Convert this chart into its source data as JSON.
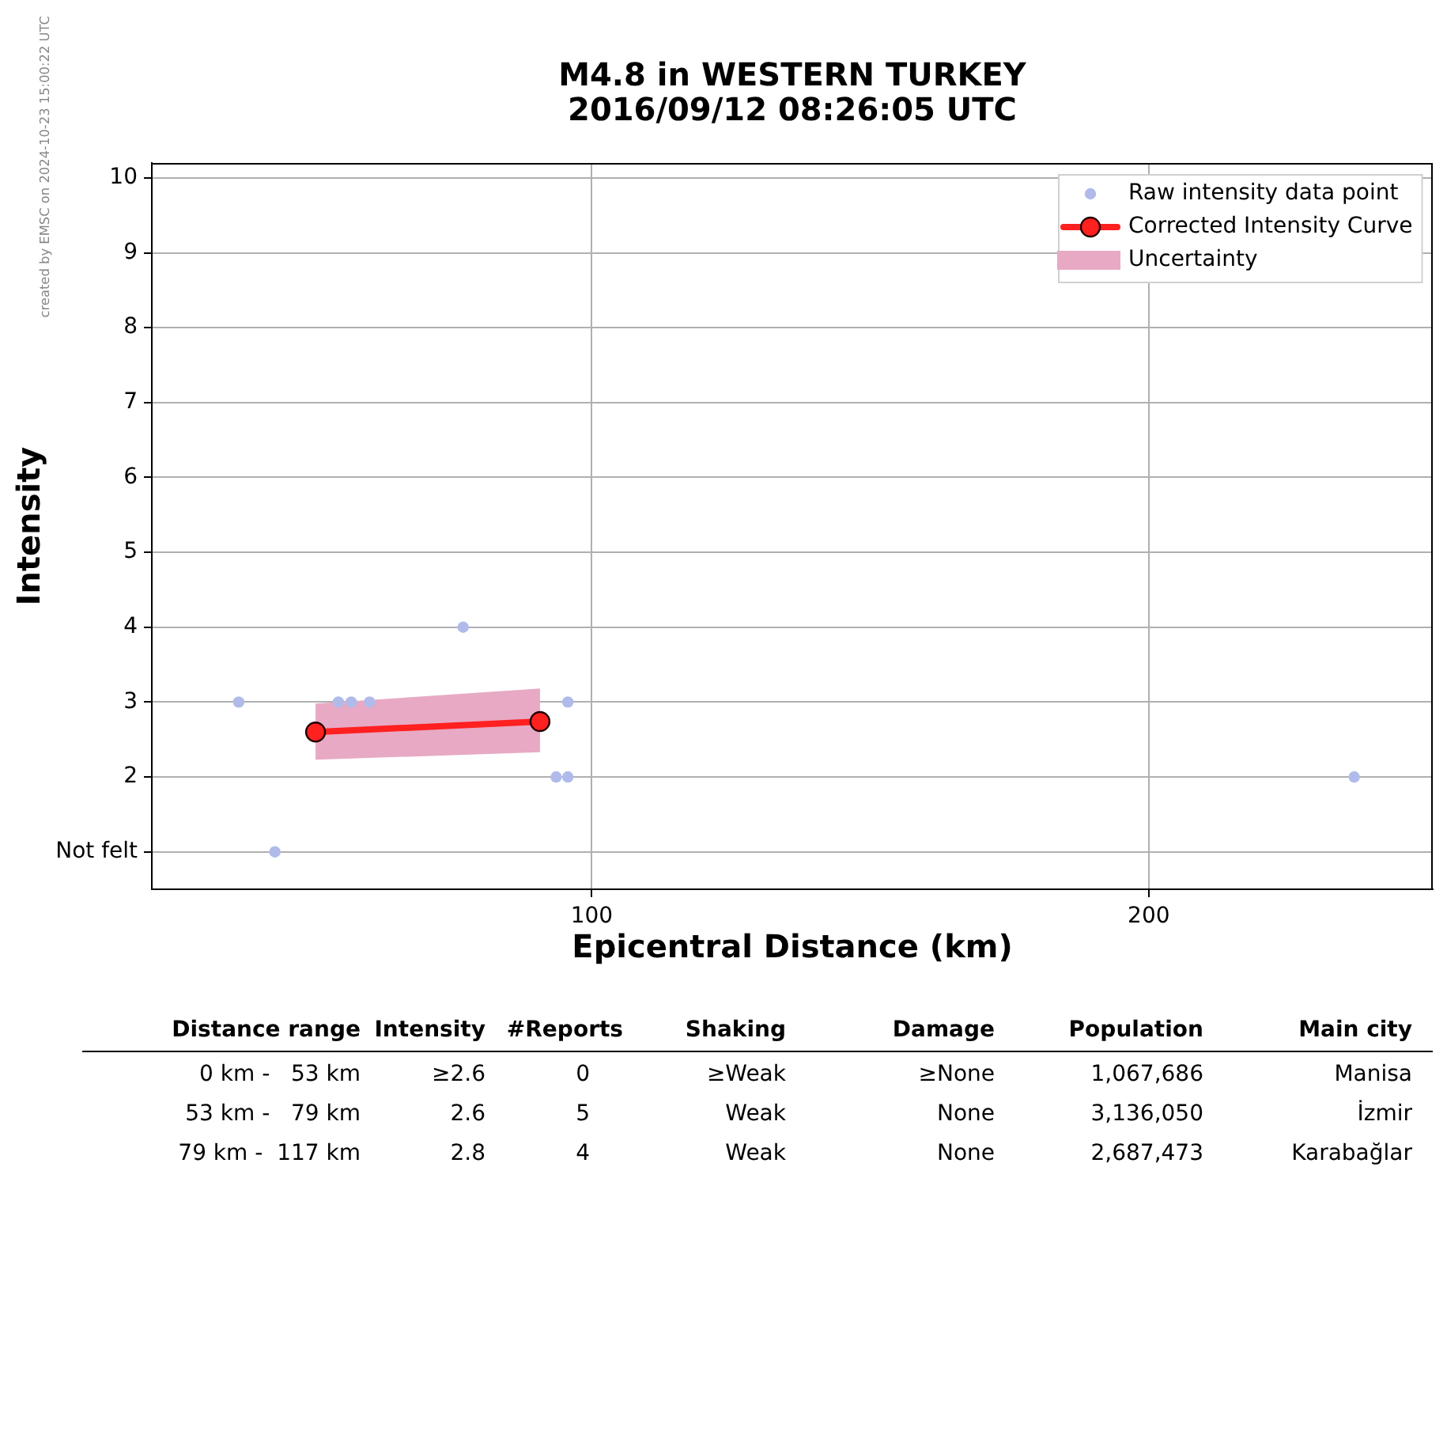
{
  "chart_data": [
    {
      "type": "scatter",
      "title": "M4.8 in WESTERN TURKEY",
      "subtitle": "2016/09/12 08:26:05 UTC",
      "xlabel": "Epicentral Distance (km)",
      "ylabel": "Intensity",
      "annotations": [
        "created by EMSC on 2024-10-23 15:00:22 UTC"
      ],
      "xlim": [
        21,
        251
      ],
      "xticks": [
        100,
        200
      ],
      "ylim": [
        0.5,
        10.2
      ],
      "yticks": [
        {
          "value": 1,
          "label": "Not felt"
        },
        2,
        3,
        4,
        5,
        6,
        7,
        8,
        9,
        10
      ],
      "grid": true,
      "legend": "top right",
      "series": [
        {
          "name": "Raw intensity data point",
          "type": "scatter",
          "color": "#b0bbea",
          "marker": "circle",
          "x": [
            36.6,
            43.1,
            54.5,
            56.8,
            60.1,
            76.9,
            93.6,
            95.7,
            95.7,
            236.9
          ],
          "values": [
            3,
            1,
            3,
            3,
            3,
            4,
            2,
            2,
            3,
            2
          ]
        },
        {
          "name": "Corrected Intensity Curve",
          "type": "line",
          "color": "#ff2020",
          "marker": "circle",
          "line_style": "solid",
          "x": [
            50.4,
            90.7
          ],
          "values": [
            2.6,
            2.74
          ],
          "lower": [
            2.23,
            2.33
          ],
          "upper": [
            2.98,
            3.18
          ]
        },
        {
          "name": "Uncertainty",
          "type": "area",
          "color": "#e8a9c4"
        }
      ]
    },
    {
      "type": "other",
      "categories": [
        "Distance range",
        "Intensity",
        "#Reports",
        "Shaking",
        "Damage",
        "Population",
        "Main city"
      ],
      "cell_labels": [
        [
          "0 km -   53 km",
          "≥2.6",
          "0",
          "≥Weak",
          "≥None",
          "1,067,686",
          "Manisa"
        ],
        [
          "53 km -   79 km",
          "2.6",
          "5",
          "Weak",
          "None",
          "3,136,050",
          "İzmir"
        ],
        [
          "79 km -  117 km",
          "2.8",
          "4",
          "Weak",
          "None",
          "2,687,473",
          "Karabağlar"
        ]
      ]
    }
  ]
}
